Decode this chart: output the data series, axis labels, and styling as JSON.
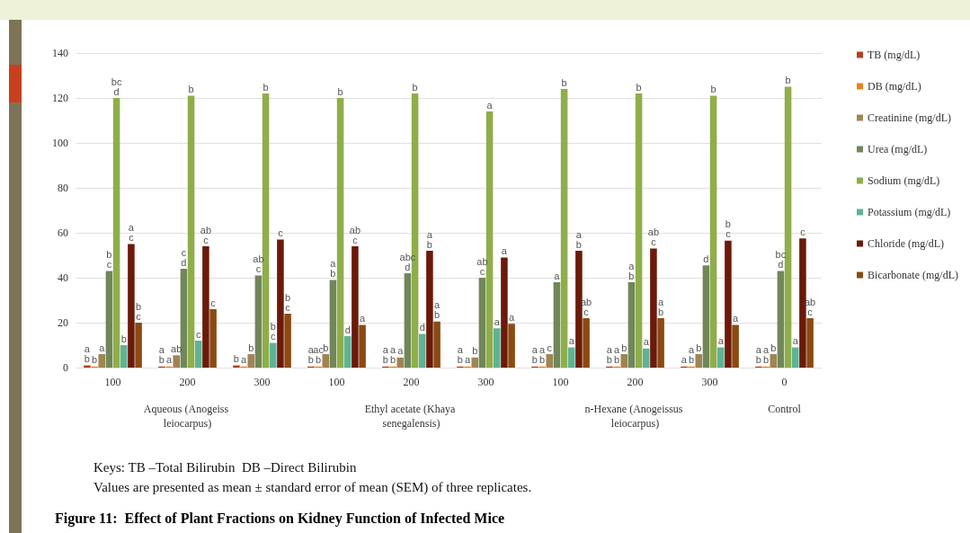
{
  "chart_data": {
    "type": "bar",
    "title": "Figure 11:  Effect of Plant Fractions on Kidney Function of Infected Mice",
    "categories": [
      "100",
      "200",
      "300",
      "100",
      "200",
      "300",
      "100",
      "200",
      "300",
      "0"
    ],
    "annotations": [
      "Aqueous (Anogeiss leiocarpus)",
      "Ethyl acetate (Khaya senegalensis)",
      "n-Hexane (Anogeissus leiocarpus)",
      "Control",
      "Keys: TB –Total Bilirubin  DB –Direct Bilirubin",
      "Values are presented as mean ± standard error of mean (SEM) of three replicates."
    ],
    "ylim": [
      0,
      140
    ],
    "yticks": [
      0,
      20,
      40,
      60,
      80,
      100,
      120,
      140
    ],
    "grid": "y",
    "legend": "right",
    "series": [
      {
        "name": "TB (mg/dL)",
        "color": "#b5401f",
        "values": [
          1,
          0.5,
          1,
          0.5,
          0.5,
          0.5,
          0.5,
          0.5,
          0.5,
          0.5
        ],
        "value_labels": [
          "a\nb",
          "a\nb",
          "b",
          "a\nb",
          "a\nb",
          "a\nb",
          "a\nb",
          "a\nb",
          "a",
          "a\nb"
        ]
      },
      {
        "name": "DB (mg/dL)",
        "color": "#e8821e",
        "values": [
          0.5,
          0.5,
          0.5,
          0.5,
          0.5,
          0.5,
          0.5,
          0.5,
          0.5,
          0.5
        ],
        "value_labels": [
          "b",
          "a",
          "a",
          "ac\nb",
          "a\nb",
          "a",
          "a\nb",
          "a\nb",
          "a\nb",
          "a\nb"
        ]
      },
      {
        "name": "Creatinine (mg/dL)",
        "color": "#a08454",
        "values": [
          6,
          5.5,
          6,
          6,
          4.5,
          4.5,
          6,
          6,
          6,
          6
        ],
        "value_labels": [
          "a",
          "ab",
          "b",
          "b",
          "a",
          "b",
          "c",
          "b",
          "b",
          "b"
        ]
      },
      {
        "name": "Urea (mg/dL)",
        "color": "#71875a",
        "values": [
          43,
          44,
          41,
          39,
          42,
          40,
          38,
          38,
          45.5,
          43
        ],
        "value_labels": [
          "b\nc",
          "c\nd",
          "ab\nc",
          "a\nb",
          "abc\nd",
          "ab\nc",
          "a",
          "a\nb",
          "d",
          "bc\nd"
        ]
      },
      {
        "name": "Sodium (mg/dL)",
        "color": "#8fae4a",
        "values": [
          120,
          121,
          122,
          120,
          122,
          114,
          124,
          122,
          121,
          125
        ],
        "value_labels": [
          "bc\nd",
          "b",
          "b",
          "b",
          "b",
          "a",
          "b",
          "b",
          "b",
          "b"
        ]
      },
      {
        "name": "Potassium (mg/dL)",
        "color": "#5fb394",
        "values": [
          10,
          12,
          11,
          14,
          15,
          17.5,
          9,
          8.5,
          9,
          9
        ],
        "value_labels": [
          "b",
          "c",
          "b\nc",
          "d",
          "d",
          "a",
          "a",
          "a",
          "a",
          "a"
        ]
      },
      {
        "name": "Chloride (mg/dL)",
        "color": "#6b1a0a",
        "values": [
          55,
          54,
          57,
          54,
          52,
          49,
          52,
          53,
          56.5,
          57.5
        ],
        "value_labels": [
          "a\nc",
          "ab\nc",
          "c",
          "ab\nc",
          "a\nb",
          "a",
          "a\nb",
          "ab\nc",
          "b\nc",
          "c"
        ]
      },
      {
        "name": "Bicarbonate (mg/dL)",
        "color": "#8b4a12",
        "values": [
          20,
          26,
          24,
          19,
          20.5,
          19.5,
          22,
          22,
          19,
          22
        ],
        "value_labels": [
          "b\nc",
          "c",
          "b\nc",
          "a",
          "a\nb",
          "a",
          "ab\nc",
          "a\nb",
          "a",
          "ab\nc"
        ]
      }
    ]
  }
}
